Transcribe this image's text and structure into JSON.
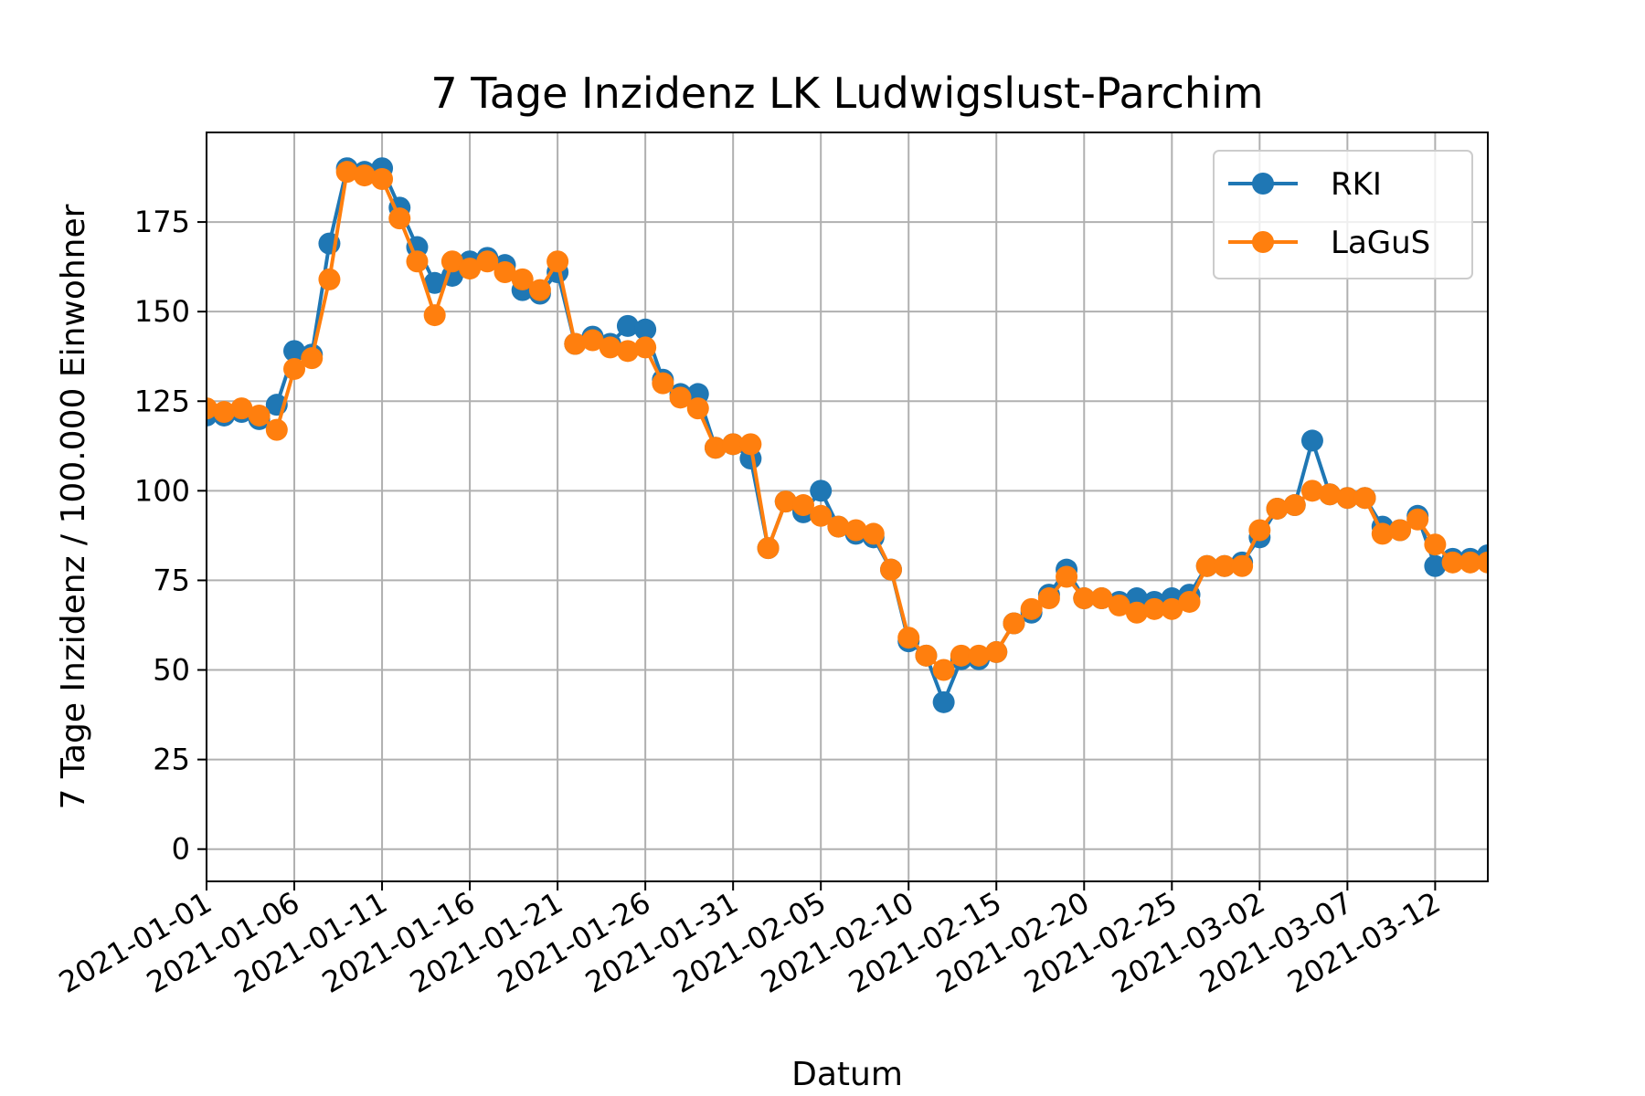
{
  "chart_data": {
    "type": "line",
    "title": "7 Tage Inzidenz LK Ludwigslust-Parchim",
    "xlabel": "Datum",
    "ylabel": "7 Tage Inzidenz / 100.000 Einwohner",
    "xlim": [
      "2021-01-01",
      "2021-03-15"
    ],
    "ylim": [
      -9,
      200
    ],
    "yticks": [
      0,
      25,
      50,
      75,
      100,
      125,
      150,
      175
    ],
    "xticks": [
      "2021-01-01",
      "2021-01-06",
      "2021-01-11",
      "2021-01-16",
      "2021-01-21",
      "2021-01-26",
      "2021-01-31",
      "2021-02-05",
      "2021-02-10",
      "2021-02-15",
      "2021-02-20",
      "2021-02-25",
      "2021-03-02",
      "2021-03-07",
      "2021-03-12"
    ],
    "grid": true,
    "legend": "top-right",
    "x": [
      "2021-01-01",
      "2021-01-02",
      "2021-01-03",
      "2021-01-04",
      "2021-01-05",
      "2021-01-06",
      "2021-01-07",
      "2021-01-08",
      "2021-01-09",
      "2021-01-10",
      "2021-01-11",
      "2021-01-12",
      "2021-01-13",
      "2021-01-14",
      "2021-01-15",
      "2021-01-16",
      "2021-01-17",
      "2021-01-18",
      "2021-01-19",
      "2021-01-20",
      "2021-01-21",
      "2021-01-22",
      "2021-01-23",
      "2021-01-24",
      "2021-01-25",
      "2021-01-26",
      "2021-01-27",
      "2021-01-28",
      "2021-01-29",
      "2021-01-30",
      "2021-01-31",
      "2021-02-01",
      "2021-02-02",
      "2021-02-03",
      "2021-02-04",
      "2021-02-05",
      "2021-02-06",
      "2021-02-07",
      "2021-02-08",
      "2021-02-09",
      "2021-02-10",
      "2021-02-11",
      "2021-02-12",
      "2021-02-13",
      "2021-02-14",
      "2021-02-15",
      "2021-02-16",
      "2021-02-17",
      "2021-02-18",
      "2021-02-19",
      "2021-02-20",
      "2021-02-21",
      "2021-02-22",
      "2021-02-23",
      "2021-02-24",
      "2021-02-25",
      "2021-02-26",
      "2021-02-27",
      "2021-02-28",
      "2021-03-01",
      "2021-03-02",
      "2021-03-03",
      "2021-03-04",
      "2021-03-05",
      "2021-03-06",
      "2021-03-07",
      "2021-03-08",
      "2021-03-09",
      "2021-03-10",
      "2021-03-11",
      "2021-03-12",
      "2021-03-13",
      "2021-03-14",
      "2021-03-15"
    ],
    "series": [
      {
        "name": "RKI",
        "color": "#1f77b4",
        "values": [
          121,
          121,
          122,
          120,
          124,
          139,
          138,
          169,
          190,
          189,
          190,
          179,
          168,
          158,
          160,
          164,
          165,
          163,
          156,
          155,
          161,
          141,
          143,
          141,
          146,
          145,
          131,
          127,
          127,
          112,
          113,
          109,
          84,
          97,
          94,
          100,
          90,
          88,
          87,
          78,
          58,
          54,
          41,
          53,
          53,
          55,
          63,
          66,
          71,
          78,
          70,
          70,
          69,
          70,
          69,
          70,
          71,
          79,
          79,
          80,
          87,
          95,
          96,
          114,
          99,
          98,
          98,
          90,
          89,
          93,
          79,
          81,
          81,
          82
        ]
      },
      {
        "name": "LaGuS",
        "color": "#ff7f0e",
        "values": [
          123,
          122,
          123,
          121,
          117,
          134,
          137,
          159,
          189,
          188,
          187,
          176,
          164,
          149,
          164,
          162,
          164,
          161,
          159,
          156,
          164,
          141,
          142,
          140,
          139,
          140,
          130,
          126,
          123,
          112,
          113,
          113,
          84,
          97,
          96,
          93,
          90,
          89,
          88,
          78,
          59,
          54,
          50,
          54,
          54,
          55,
          63,
          67,
          70,
          76,
          70,
          70,
          68,
          66,
          67,
          67,
          69,
          79,
          79,
          79,
          89,
          95,
          96,
          100,
          99,
          98,
          98,
          88,
          89,
          92,
          85,
          80,
          80,
          80
        ]
      }
    ]
  }
}
